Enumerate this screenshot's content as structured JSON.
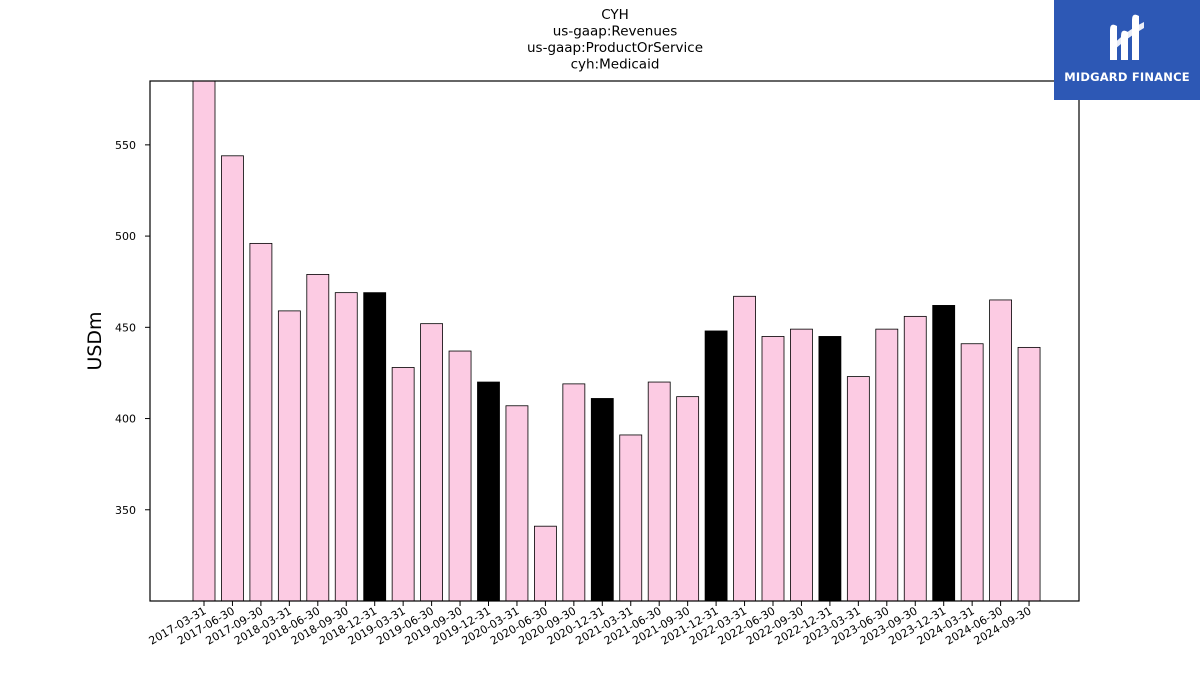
{
  "brand": {
    "name": "MIDGARD FINANCE",
    "logo_icon": "midgard-m-icon",
    "colors": {
      "background": "#2d58b5",
      "foreground": "#ffffff"
    }
  },
  "chart_data": {
    "type": "bar",
    "title_lines": [
      "CYH",
      "us-gaap:Revenues",
      "us-gaap:ProductOrService",
      "cyh:Medicaid"
    ],
    "xlabel": "",
    "ylabel": "USDm",
    "ylim": [
      300,
      585
    ],
    "yticks": [
      350,
      400,
      450,
      500,
      550
    ],
    "grid": false,
    "legend": "none",
    "colors": {
      "quarter": "#fccbe3",
      "year_end": "#000000",
      "edge": "#000000"
    },
    "categories": [
      "2017-03-31",
      "2017-06-30",
      "2017-09-30",
      "2018-03-31",
      "2018-06-30",
      "2018-09-30",
      "2018-12-31",
      "2019-03-31",
      "2019-06-30",
      "2019-09-30",
      "2019-12-31",
      "2020-03-31",
      "2020-06-30",
      "2020-09-30",
      "2020-12-31",
      "2021-03-31",
      "2021-06-30",
      "2021-09-30",
      "2021-12-31",
      "2022-03-31",
      "2022-06-30",
      "2022-09-30",
      "2022-12-31",
      "2023-03-31",
      "2023-06-30",
      "2023-09-30",
      "2023-12-31",
      "2024-03-31",
      "2024-06-30",
      "2024-09-30"
    ],
    "values": [
      585,
      544,
      496,
      459,
      479,
      469,
      469,
      428,
      452,
      437,
      420,
      407,
      341,
      419,
      411,
      391,
      420,
      412,
      448,
      467,
      445,
      449,
      445,
      423,
      449,
      456,
      462,
      441,
      465,
      439
    ],
    "year_end": [
      false,
      false,
      false,
      false,
      false,
      false,
      true,
      false,
      false,
      false,
      true,
      false,
      false,
      false,
      true,
      false,
      false,
      false,
      true,
      false,
      false,
      false,
      true,
      false,
      false,
      false,
      true,
      false,
      false,
      false
    ]
  }
}
